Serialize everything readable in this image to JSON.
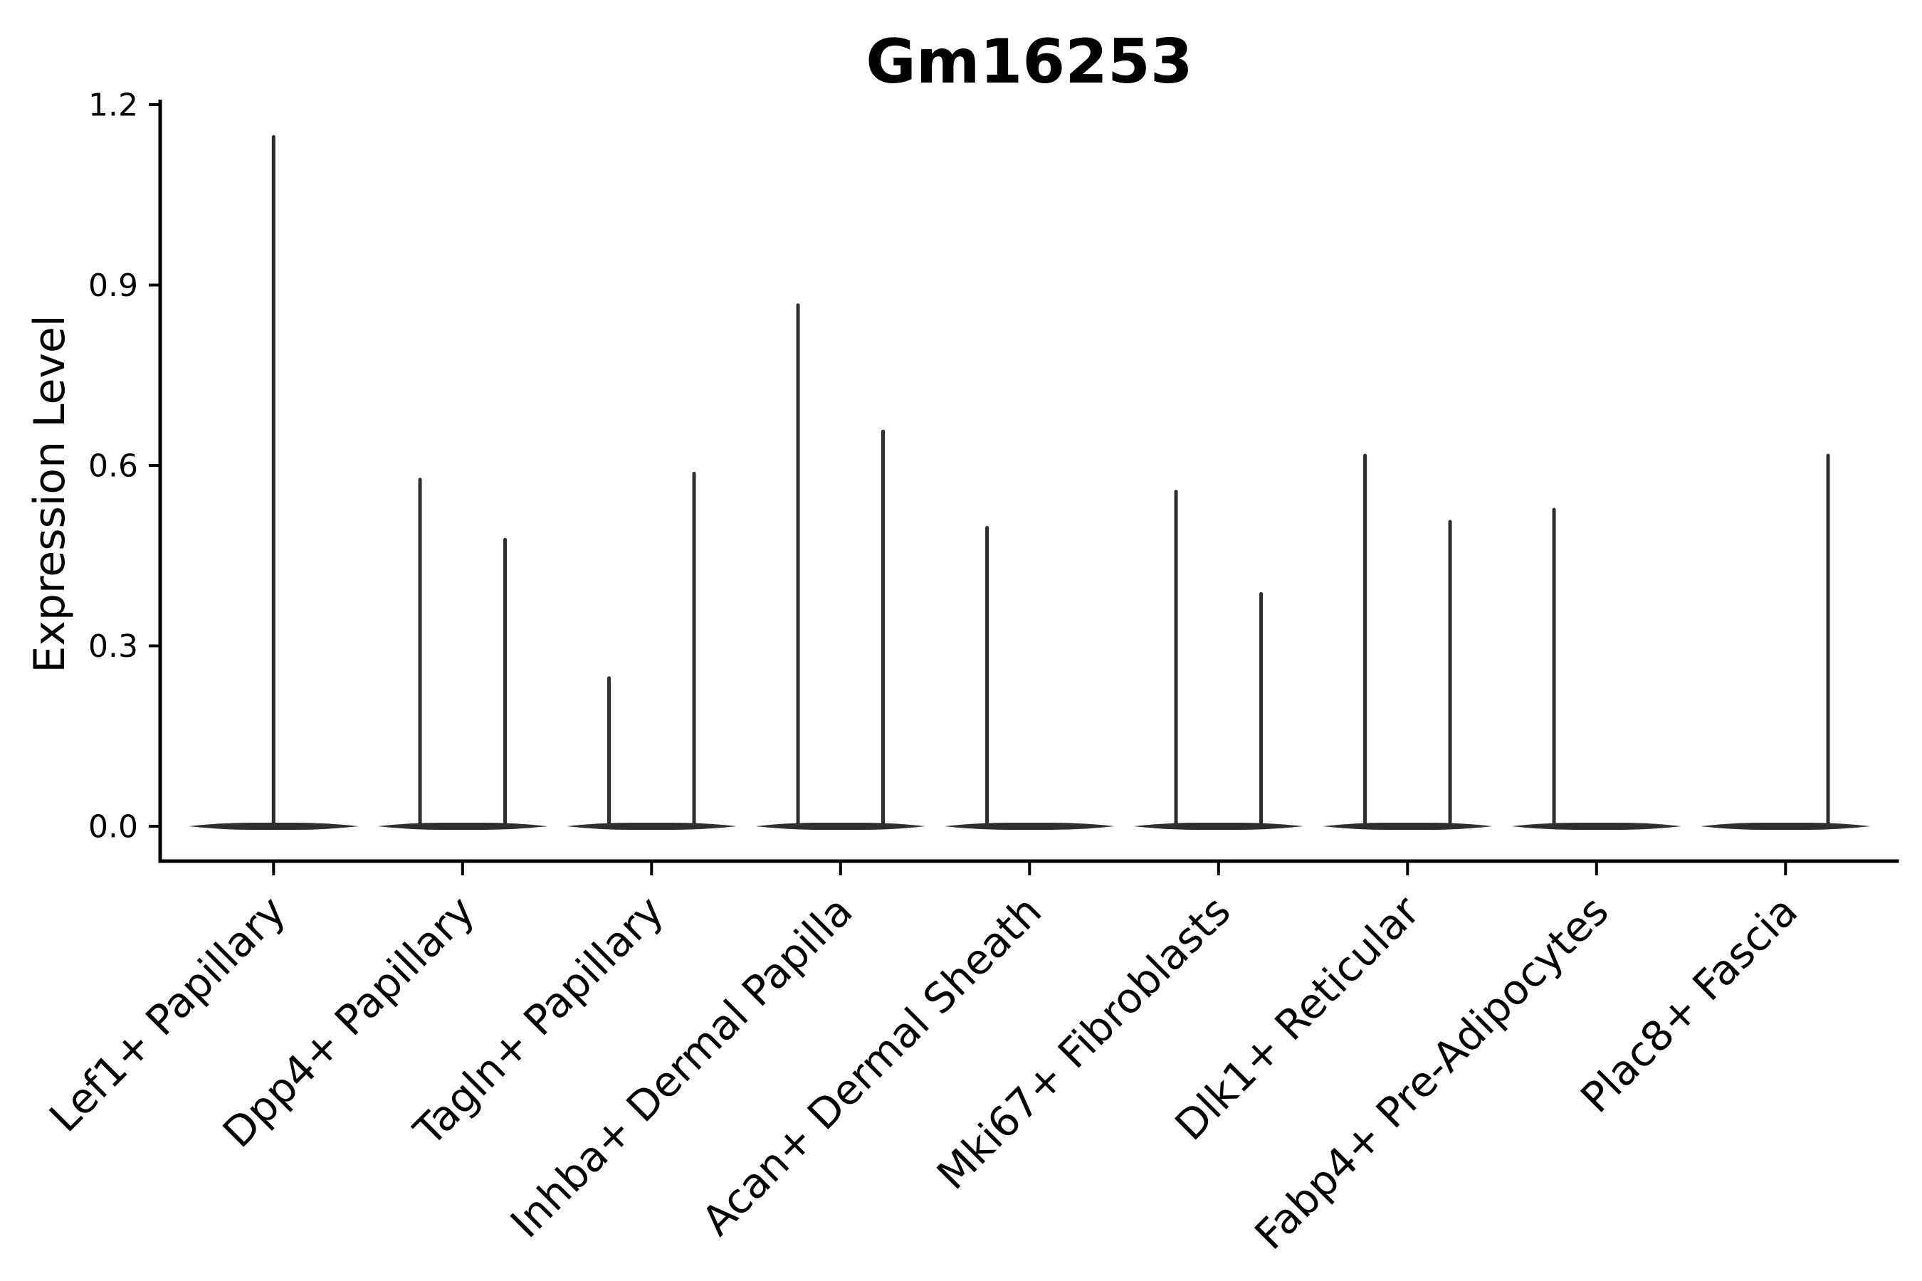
{
  "page": {
    "background": "#ffffff"
  },
  "chart_data": {
    "type": "violin",
    "title": "Gm16253",
    "ylabel": "Expression Level",
    "xlabel": "",
    "grid": false,
    "legend": null,
    "ylim": [
      0,
      1.2
    ],
    "ytick_labels": [
      "0.0",
      "0.3",
      "0.6",
      "0.9",
      "1.2"
    ],
    "ytick_values": [
      0.0,
      0.3,
      0.6,
      0.9,
      1.2
    ],
    "categories": [
      "Lef1+ Papillary",
      "Dpp4+ Papillary",
      "Tagln+ Papillary",
      "Inhba+ Dermal Papilla",
      "Acan+ Dermal Sheath",
      "Mki67+ Fibroblasts",
      "Dlk1+ Reticular",
      "Fabp4+ Pre-Adipocytes",
      "Plac8+ Fascia"
    ],
    "series": [
      {
        "category": "Lef1+ Papillary",
        "violins": [
          {
            "position": "center",
            "max_expression": 1.15
          }
        ]
      },
      {
        "category": "Dpp4+ Papillary",
        "violins": [
          {
            "position": "left",
            "max_expression": 0.58
          },
          {
            "position": "right",
            "max_expression": 0.48
          }
        ]
      },
      {
        "category": "Tagln+ Papillary",
        "violins": [
          {
            "position": "left",
            "max_expression": 0.25
          },
          {
            "position": "right",
            "max_expression": 0.59
          }
        ]
      },
      {
        "category": "Inhba+ Dermal Papilla",
        "violins": [
          {
            "position": "left",
            "max_expression": 0.87
          },
          {
            "position": "right",
            "max_expression": 0.66
          }
        ]
      },
      {
        "category": "Acan+ Dermal Sheath",
        "violins": [
          {
            "position": "left",
            "max_expression": 0.5
          },
          {
            "position": "right",
            "max_expression": 0.0
          }
        ]
      },
      {
        "category": "Mki67+ Fibroblasts",
        "violins": [
          {
            "position": "left",
            "max_expression": 0.56
          },
          {
            "position": "right",
            "max_expression": 0.39
          }
        ]
      },
      {
        "category": "Dlk1+ Reticular",
        "violins": [
          {
            "position": "left",
            "max_expression": 0.62
          },
          {
            "position": "right",
            "max_expression": 0.51
          }
        ]
      },
      {
        "category": "Fabp4+ Pre-Adipocytes",
        "violins": [
          {
            "position": "left",
            "max_expression": 0.53
          },
          {
            "position": "right",
            "max_expression": 0.0
          }
        ]
      },
      {
        "category": "Plac8+ Fascia",
        "violins": [
          {
            "position": "left",
            "max_expression": 0.0
          },
          {
            "position": "right",
            "max_expression": 0.62
          }
        ]
      }
    ],
    "colors": {
      "violin": "#2e2e2e",
      "axis": "#000000",
      "text": "#000000",
      "background": "#ffffff"
    }
  }
}
